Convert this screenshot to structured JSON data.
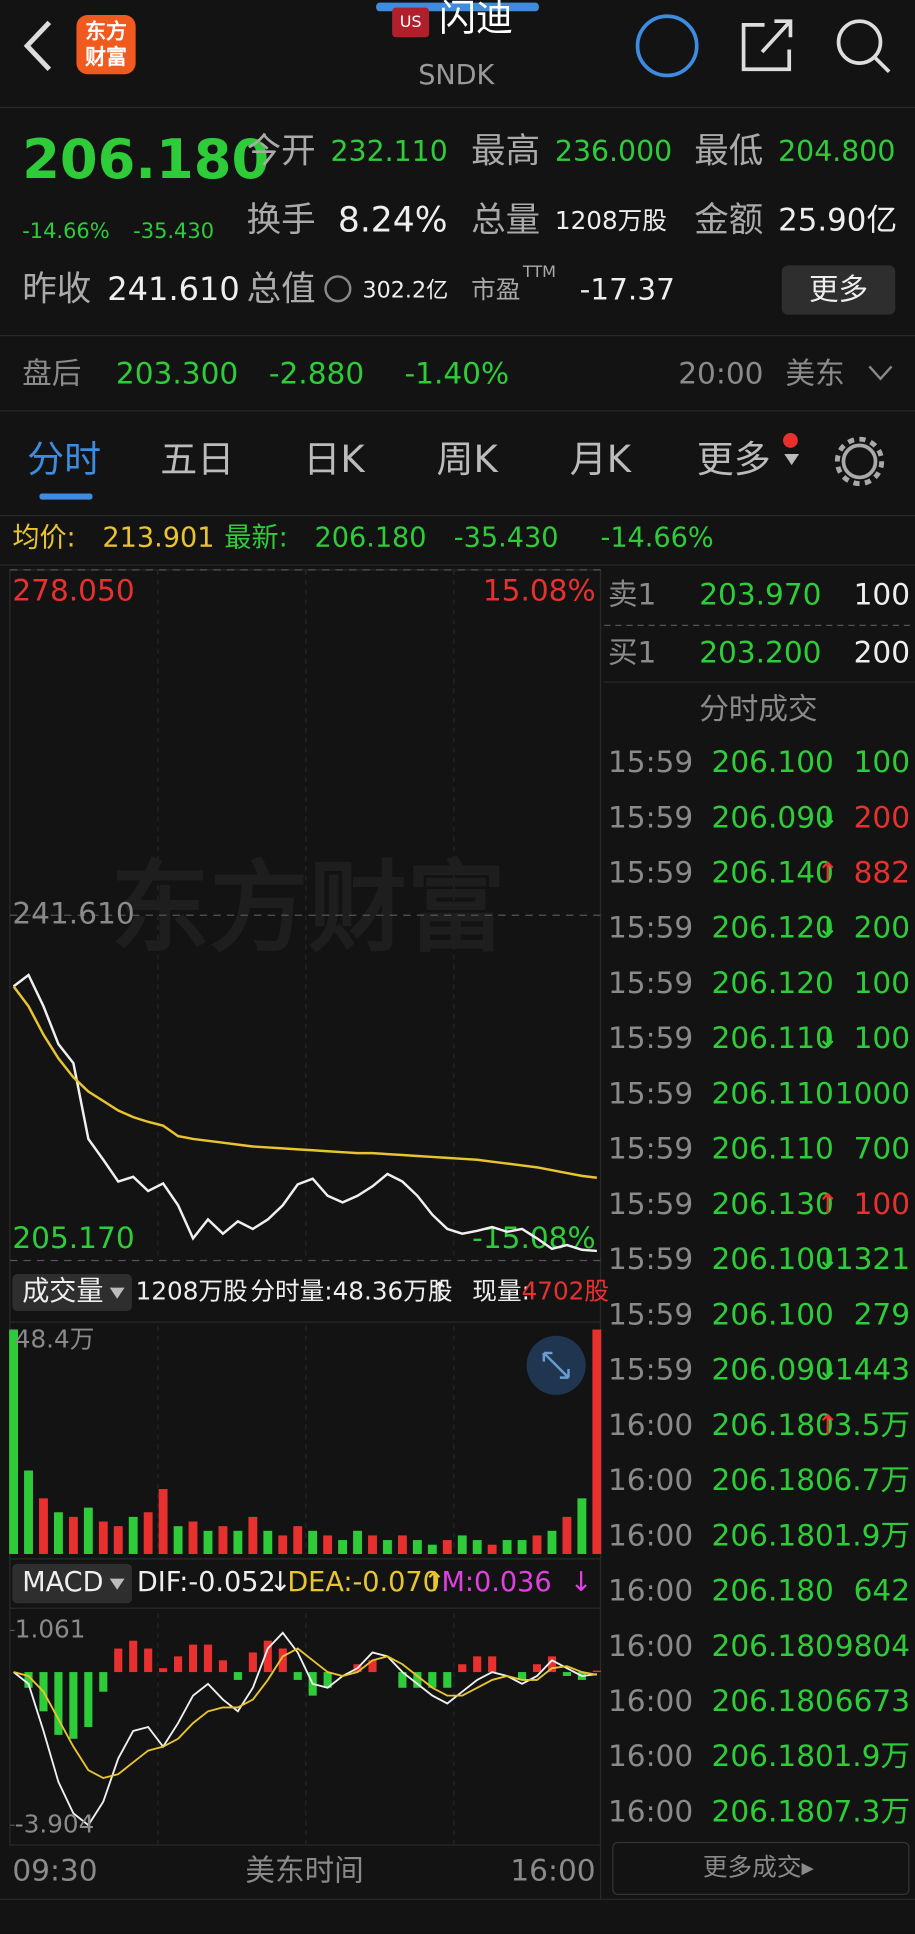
{
  "header": {
    "badge": "US",
    "name": "闪迪",
    "code": "SNDK",
    "logo": [
      "东方",
      "财富"
    ]
  },
  "quote": {
    "price": "206.180",
    "change_pct": "-14.66%",
    "change": "-35.430",
    "stats": [
      {
        "label": "今开",
        "value": "232.110"
      },
      {
        "label": "最高",
        "value": "236.000"
      },
      {
        "label": "最低",
        "value": "204.800"
      },
      {
        "label": "换手",
        "value": "8.24%"
      },
      {
        "label": "总量",
        "value": "1208万股"
      },
      {
        "label": "金额",
        "value": "25.90亿"
      },
      {
        "label": "昨收",
        "value": "241.610"
      },
      {
        "label": "总值",
        "value": "302.2亿"
      },
      {
        "label": "市盈",
        "superscript": "TTM",
        "value": "-17.37"
      }
    ],
    "more": "更多"
  },
  "after_hours": {
    "label": "盘后",
    "price": "203.300",
    "change": "-2.880",
    "change_pct": "-1.40%",
    "time": "20:00",
    "zone": "美东"
  },
  "tabs": [
    "分时",
    "五日",
    "日K",
    "周K",
    "月K",
    "更多"
  ],
  "info_bar": {
    "avg_label": "均价:",
    "avg": "213.901",
    "latest_label": "最新:",
    "latest": "206.180",
    "change": "-35.430",
    "change_pct": "-14.66%"
  },
  "order_book": [
    {
      "side": "卖1",
      "price": "203.970",
      "volume": "100"
    },
    {
      "side": "买1",
      "price": "203.200",
      "volume": "200"
    }
  ],
  "trades_title": "分时成交",
  "trades": [
    {
      "time": "15:59",
      "price": "206.100",
      "volume": "100",
      "color": "green"
    },
    {
      "time": "15:59",
      "price": "206.090",
      "arrow": "↓",
      "volume": "200",
      "color": "red"
    },
    {
      "time": "15:59",
      "price": "206.140",
      "arrow": "↑",
      "volume": "882",
      "color": "red"
    },
    {
      "time": "15:59",
      "price": "206.120",
      "arrow": "↓",
      "volume": "200",
      "color": "green"
    },
    {
      "time": "15:59",
      "price": "206.120",
      "volume": "100",
      "color": "green"
    },
    {
      "time": "15:59",
      "price": "206.110",
      "arrow": "↓",
      "volume": "100",
      "color": "green"
    },
    {
      "time": "15:59",
      "price": "206.110",
      "volume": "1000",
      "color": "green"
    },
    {
      "time": "15:59",
      "price": "206.110",
      "volume": "700",
      "color": "green"
    },
    {
      "time": "15:59",
      "price": "206.130",
      "arrow": "↑",
      "volume": "100",
      "color": "red"
    },
    {
      "time": "15:59",
      "price": "206.100",
      "arrow": "↓",
      "volume": "1321",
      "color": "green"
    },
    {
      "time": "15:59",
      "price": "206.100",
      "volume": "279",
      "color": "green"
    },
    {
      "time": "15:59",
      "price": "206.090",
      "arrow": "↓",
      "volume": "1443",
      "color": "green"
    },
    {
      "time": "16:00",
      "price": "206.180",
      "arrow": "↑",
      "volume": "3.5万",
      "color": "green"
    },
    {
      "time": "16:00",
      "price": "206.180",
      "volume": "6.7万",
      "color": "green"
    },
    {
      "time": "16:00",
      "price": "206.180",
      "volume": "1.9万",
      "color": "green"
    },
    {
      "time": "16:00",
      "price": "206.180",
      "volume": "642",
      "color": "green"
    },
    {
      "time": "16:00",
      "price": "206.180",
      "volume": "9804",
      "color": "green"
    },
    {
      "time": "16:00",
      "price": "206.180",
      "volume": "6673",
      "color": "green"
    },
    {
      "time": "16:00",
      "price": "206.180",
      "volume": "1.9万",
      "color": "green"
    },
    {
      "time": "16:00",
      "price": "206.180",
      "volume": "7.3万",
      "color": "green"
    }
  ],
  "more_trades": "更多成交▸",
  "chart_data": [
    {
      "type": "line",
      "watermark": "东方财富",
      "xlabel": "美东时间",
      "x_labels": [
        "09:30",
        "16:00"
      ],
      "ylim": [
        205.17,
        278.05
      ],
      "yticks": [
        {
          "value": 205.17,
          "label": "205.170"
        },
        {
          "value": 241.61,
          "label": "241.610"
        },
        {
          "value": 278.05,
          "label": "278.050"
        }
      ],
      "ytick_colors": [
        "#2fcc3a",
        "#8a8a8a",
        "#e8312f"
      ],
      "y2lim": [
        -15.08,
        15.08
      ],
      "y2ticks": [
        {
          "value": -15.08,
          "label": "-15.08%"
        },
        {
          "value": 15.08,
          "label": "15.08%"
        }
      ],
      "series": [
        {
          "color": "#f0f0f0",
          "values": [
            234.1,
            235.3,
            232,
            228,
            226,
            218,
            215.8,
            213.5,
            214,
            212.5,
            213.3,
            211,
            207.5,
            209.5,
            208,
            209.3,
            208.5,
            209.5,
            211,
            213.2,
            213.8,
            212,
            211.3,
            212,
            213,
            214.3,
            213.5,
            212,
            210,
            208.5,
            208,
            208.3,
            208.7,
            208.2,
            208.5,
            207.5,
            206.4,
            206.8,
            206.3,
            206.18
          ]
        },
        {
          "color": "#e8c530",
          "values": [
            234.1,
            232,
            229,
            226.5,
            224.5,
            223,
            222,
            221,
            220.3,
            219.8,
            219.4,
            218.3,
            218.0,
            217.8,
            217.6,
            217.4,
            217.2,
            217.1,
            217.0,
            216.9,
            216.8,
            216.7,
            216.6,
            216.5,
            216.5,
            216.4,
            216.3,
            216.2,
            216.1,
            216.0,
            215.9,
            215.8,
            215.6,
            215.4,
            215.2,
            215.0,
            214.7,
            214.4,
            214.1,
            213.9
          ]
        }
      ]
    },
    {
      "type": "bar",
      "title": "成交量",
      "total": "1208万股",
      "period": "分时量:48.36万股",
      "arrow": "↑",
      "current_label": "现量:",
      "current": "4702股",
      "ylim": [
        0,
        48.4
      ],
      "yticks": [
        {
          "value": 48.4,
          "label": "48.4万"
        }
      ],
      "values": [
        48.4,
        18,
        12,
        9,
        8,
        10,
        7,
        6,
        8,
        9,
        14,
        6,
        7,
        5,
        6,
        5,
        8,
        5,
        4,
        6,
        5,
        4,
        3,
        5,
        4,
        3,
        4,
        3,
        2,
        3,
        4,
        3,
        2,
        3,
        3,
        4,
        5,
        8,
        12,
        48.4
      ],
      "colors": [
        "#2fcc3a",
        "#2fcc3a",
        "#e8312f",
        "#2fcc3a",
        "#e8312f",
        "#2fcc3a",
        "#e8312f",
        "#e8312f",
        "#2fcc3a",
        "#e8312f",
        "#e8312f",
        "#2fcc3a",
        "#e8312f",
        "#2fcc3a",
        "#e8312f",
        "#2fcc3a",
        "#e8312f",
        "#2fcc3a",
        "#e8312f",
        "#e8312f",
        "#2fcc3a",
        "#e8312f",
        "#2fcc3a",
        "#2fcc3a",
        "#e8312f",
        "#2fcc3a",
        "#e8312f",
        "#2fcc3a",
        "#2fcc3a",
        "#e8312f",
        "#2fcc3a",
        "#2fcc3a",
        "#e8312f",
        "#2fcc3a",
        "#2fcc3a",
        "#e8312f",
        "#2fcc3a",
        "#e8312f",
        "#2fcc3a",
        "#e8312f"
      ]
    },
    {
      "type": "macd",
      "title": "MACD",
      "legend": [
        "DIF:-0.052",
        "↓",
        "DEA:-0.070",
        "↑",
        "M:0.036",
        "↓"
      ],
      "ylim": [
        -3.904,
        1.061
      ],
      "yticks": [
        {
          "value": -3.904,
          "label": "-3.904"
        },
        {
          "value": 1.061,
          "label": "1.061"
        }
      ],
      "up_color": "#e8312f",
      "down_color": "#2fcc3a",
      "series": [
        {
          "color": "#f0f0f0",
          "values": [
            0,
            -0.3,
            -1.5,
            -2.8,
            -3.6,
            -3.9,
            -3.3,
            -2.2,
            -1.5,
            -1.4,
            -1.9,
            -1.3,
            -0.6,
            -0.3,
            -0.7,
            -1.0,
            -0.4,
            0.6,
            1.0,
            0.5,
            -0.3,
            -0.4,
            -0.1,
            0.1,
            0.5,
            0.4,
            0.0,
            -0.3,
            -0.6,
            -0.8,
            -0.5,
            -0.2,
            0.0,
            -0.1,
            -0.3,
            -0.1,
            0.3,
            0.1,
            -0.1,
            -0.052
          ]
        },
        {
          "color": "#e8c530",
          "values": [
            0,
            -0.1,
            -0.5,
            -1.2,
            -1.9,
            -2.5,
            -2.7,
            -2.6,
            -2.3,
            -2.0,
            -1.9,
            -1.7,
            -1.3,
            -1.0,
            -0.9,
            -0.9,
            -0.7,
            -0.2,
            0.4,
            0.6,
            0.3,
            0.0,
            -0.1,
            0.0,
            0.3,
            0.4,
            0.2,
            -0.1,
            -0.4,
            -0.6,
            -0.6,
            -0.4,
            -0.2,
            -0.1,
            -0.2,
            -0.2,
            0.1,
            0.15,
            0.0,
            -0.07
          ]
        }
      ],
      "histogram": [
        0,
        -0.4,
        -1.0,
        -1.6,
        -1.7,
        -1.4,
        -0.5,
        0.6,
        0.8,
        0.6,
        0.1,
        0.4,
        0.7,
        0.7,
        0.3,
        -0.2,
        0.5,
        0.8,
        0.6,
        -0.2,
        -0.6,
        -0.4,
        0.0,
        0.2,
        0.3,
        0.0,
        -0.4,
        -0.4,
        -0.4,
        -0.4,
        0.2,
        0.4,
        0.4,
        0.0,
        -0.2,
        0.2,
        0.4,
        -0.1,
        -0.2,
        0.036
      ]
    }
  ]
}
